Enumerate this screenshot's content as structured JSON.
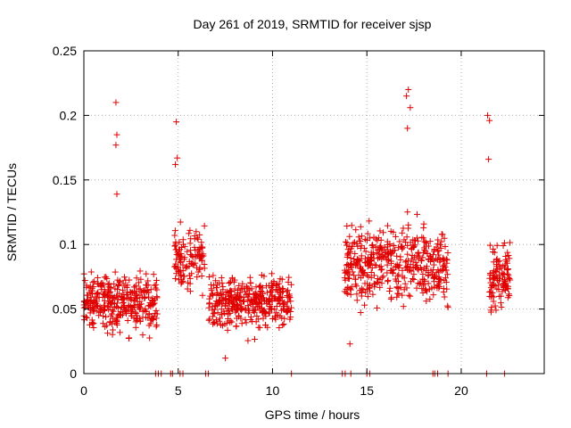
{
  "chart_data": {
    "type": "scatter",
    "title": "Day 261 of 2019, SRMTID for receiver sjsp",
    "xlabel": "GPS time / hours",
    "ylabel": "SRMTID / TECUs",
    "xlim": [
      0,
      24.4
    ],
    "ylim": [
      0,
      0.25
    ],
    "x_ticks": [
      0,
      5,
      10,
      15,
      20
    ],
    "x_tick_labels": [
      "0",
      "5",
      "10",
      "15",
      "20"
    ],
    "y_ticks": [
      0,
      0.05,
      0.1,
      0.15,
      0.2,
      0.25
    ],
    "y_tick_labels": [
      "0",
      "0.05",
      "0.1",
      "0.15",
      "0.2",
      "0.25"
    ],
    "grid": true,
    "marker": "+",
    "series_color": "#e00000",
    "clusters": [
      {
        "x_start": 0.0,
        "x_end": 3.9,
        "y_center": 0.055,
        "y_spread": 0.025,
        "count": 340
      },
      {
        "x_start": 4.8,
        "x_end": 6.4,
        "y_center": 0.09,
        "y_spread": 0.03,
        "count": 120
      },
      {
        "x_start": 6.6,
        "x_end": 11.0,
        "y_center": 0.055,
        "y_spread": 0.025,
        "count": 380
      },
      {
        "x_start": 13.8,
        "x_end": 19.3,
        "y_center": 0.085,
        "y_spread": 0.035,
        "count": 460
      },
      {
        "x_start": 21.5,
        "x_end": 22.6,
        "y_center": 0.075,
        "y_spread": 0.03,
        "count": 110
      }
    ],
    "notable_points": [
      {
        "x": 1.7,
        "y": 0.21
      },
      {
        "x": 1.75,
        "y": 0.185
      },
      {
        "x": 1.7,
        "y": 0.177
      },
      {
        "x": 1.75,
        "y": 0.139
      },
      {
        "x": 4.9,
        "y": 0.195
      },
      {
        "x": 4.95,
        "y": 0.167
      },
      {
        "x": 4.85,
        "y": 0.162
      },
      {
        "x": 17.2,
        "y": 0.22
      },
      {
        "x": 17.1,
        "y": 0.215
      },
      {
        "x": 17.3,
        "y": 0.206
      },
      {
        "x": 17.15,
        "y": 0.19
      },
      {
        "x": 21.4,
        "y": 0.2
      },
      {
        "x": 21.5,
        "y": 0.196
      },
      {
        "x": 21.45,
        "y": 0.166
      },
      {
        "x": 14.1,
        "y": 0.023
      },
      {
        "x": 7.5,
        "y": 0.012
      }
    ],
    "zero_points_x": [
      3.8,
      3.95,
      4.1,
      4.6,
      4.7,
      5.1,
      5.25,
      6.45,
      6.6,
      11.0,
      13.7,
      13.85,
      14.15,
      15.0,
      15.15,
      18.5,
      18.6,
      18.75,
      19.3,
      21.35,
      22.3
    ]
  }
}
